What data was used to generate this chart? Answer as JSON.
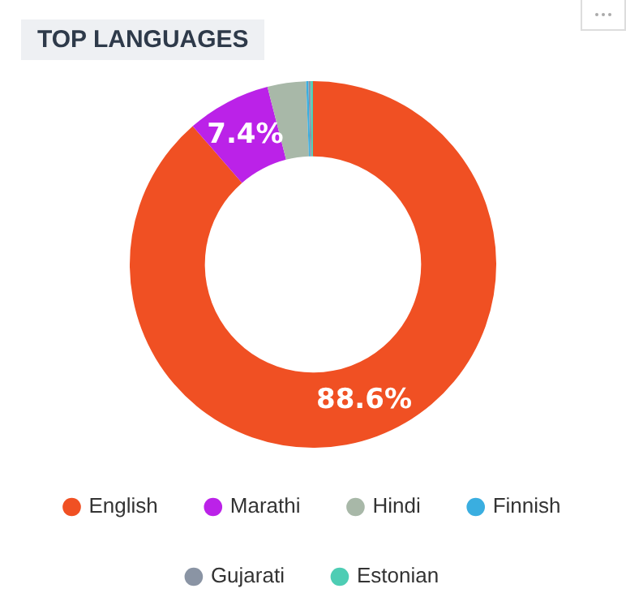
{
  "chart_data": {
    "type": "donut",
    "title": "TOP LANGUAGES",
    "categories": [
      "English",
      "Marathi",
      "Hindi",
      "Finnish",
      "Gujarati",
      "Estonian"
    ],
    "values": [
      88.6,
      7.4,
      3.4,
      0.2,
      0.2,
      0.2
    ],
    "colors": [
      "#f05023",
      "#bb22e8",
      "#a8b8a8",
      "#3aaee0",
      "#8a94a4",
      "#4ecdb4"
    ],
    "value_labels": [
      "88.6%",
      "7.4%",
      null,
      null,
      null,
      null
    ],
    "legend": "bottom"
  }
}
